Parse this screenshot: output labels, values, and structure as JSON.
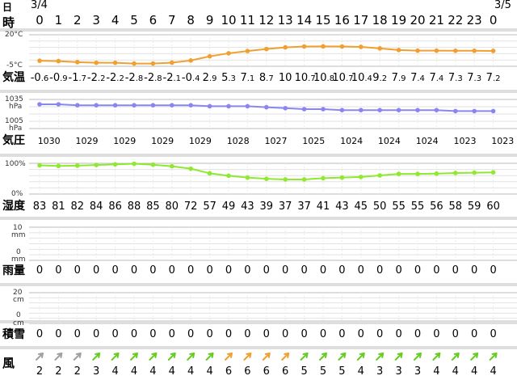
{
  "header": {
    "day_label": "日",
    "hour_label": "時",
    "date_start": "3/4",
    "date_end": "3/5",
    "hours": [
      "0",
      "1",
      "2",
      "3",
      "4",
      "5",
      "6",
      "7",
      "8",
      "9",
      "10",
      "11",
      "12",
      "13",
      "14",
      "15",
      "16",
      "17",
      "18",
      "19",
      "20",
      "21",
      "22",
      "23",
      "0"
    ]
  },
  "temperature": {
    "label": "気温",
    "axis_top": "20°C",
    "axis_bottom": "-5°C",
    "ylim": [
      -5,
      20
    ],
    "color": "#f0a030",
    "values": [
      {
        "i": "-0",
        "d": ".6"
      },
      {
        "i": "-0",
        "d": ".9"
      },
      {
        "i": "-1",
        "d": ".7"
      },
      {
        "i": "-2",
        "d": ".2"
      },
      {
        "i": "-2",
        "d": ".2"
      },
      {
        "i": "-2",
        "d": ".8"
      },
      {
        "i": "-2",
        "d": ".8"
      },
      {
        "i": "-2",
        "d": ".1"
      },
      {
        "i": "-0",
        "d": ".4"
      },
      {
        "i": "2",
        "d": ".9"
      },
      {
        "i": "5",
        "d": ".3"
      },
      {
        "i": "7",
        "d": ".1"
      },
      {
        "i": "8",
        "d": ".7"
      },
      {
        "i": "10",
        "d": ""
      },
      {
        "i": "10",
        "d": ".7"
      },
      {
        "i": "10",
        "d": ".8"
      },
      {
        "i": "10",
        "d": ".7"
      },
      {
        "i": "10",
        "d": ".4"
      },
      {
        "i": "9",
        "d": ".2"
      },
      {
        "i": "7",
        "d": ".9"
      },
      {
        "i": "7",
        "d": ".4"
      },
      {
        "i": "7",
        "d": ".4"
      },
      {
        "i": "7",
        "d": ".3"
      },
      {
        "i": "7",
        "d": ".3"
      },
      {
        "i": "7",
        "d": ".2"
      }
    ]
  },
  "pressure": {
    "label": "気圧",
    "axis_top_value": "1035",
    "axis_top_unit": "hPa",
    "axis_bottom_value": "1005",
    "axis_bottom_unit": "hPa",
    "ylim": [
      1005,
      1035
    ],
    "color": "#8a86f0",
    "values_every_2h": [
      "1030",
      "1029",
      "1029",
      "1029",
      "1029",
      "1028",
      "1027",
      "1025",
      "1024",
      "1024",
      "1024",
      "1023",
      "1023"
    ],
    "series": [
      1030,
      1030,
      1029,
      1029,
      1029,
      1029,
      1029,
      1029,
      1029,
      1028,
      1028,
      1028,
      1027,
      1026,
      1025,
      1025,
      1024,
      1024,
      1024,
      1024,
      1024,
      1024,
      1023,
      1023,
      1023
    ]
  },
  "humidity": {
    "label": "湿度",
    "axis_top": "100%",
    "axis_bottom": "0%",
    "ylim": [
      0,
      100
    ],
    "color": "#90e830",
    "values": [
      "83",
      "81",
      "82",
      "84",
      "86",
      "88",
      "85",
      "80",
      "72",
      "57",
      "49",
      "43",
      "39",
      "37",
      "37",
      "41",
      "43",
      "45",
      "50",
      "55",
      "55",
      "56",
      "58",
      "59",
      "60"
    ]
  },
  "rain": {
    "label": "雨量",
    "axis_top_value": "10",
    "axis_top_unit": "mm",
    "axis_bottom_value": "0",
    "axis_bottom_unit": "mm",
    "values": [
      "0",
      "0",
      "0",
      "0",
      "0",
      "0",
      "0",
      "0",
      "0",
      "0",
      "0",
      "0",
      "0",
      "0",
      "0",
      "0",
      "0",
      "0",
      "0",
      "0",
      "0",
      "0",
      "0",
      "0",
      "0"
    ]
  },
  "snow": {
    "label": "積雪",
    "axis_top_value": "20",
    "axis_top_unit": "cm",
    "axis_bottom_value": "0",
    "axis_bottom_unit": "cm",
    "values": [
      "0",
      "0",
      "0",
      "0",
      "0",
      "0",
      "0",
      "0",
      "0",
      "0",
      "0",
      "0",
      "0",
      "0",
      "0",
      "0",
      "0",
      "0",
      "0",
      "0",
      "0",
      "0",
      "0",
      "0",
      "0"
    ]
  },
  "wind": {
    "label": "風",
    "speeds": [
      "2",
      "2",
      "2",
      "3",
      "4",
      "4",
      "4",
      "4",
      "4",
      "4",
      "6",
      "6",
      "6",
      "6",
      "5",
      "5",
      "5",
      "4",
      "3",
      "3",
      "3",
      "4",
      "4",
      "4",
      "4"
    ],
    "colors": [
      "#a0a0a0",
      "#a0a0a0",
      "#a0a0a0",
      "#66cc22",
      "#66cc22",
      "#66cc22",
      "#66cc22",
      "#66cc22",
      "#66cc22",
      "#66cc22",
      "#f0a030",
      "#f0a030",
      "#f0a030",
      "#f0a030",
      "#66cc22",
      "#66cc22",
      "#66cc22",
      "#66cc22",
      "#66cc22",
      "#66cc22",
      "#66cc22",
      "#66cc22",
      "#66cc22",
      "#66cc22",
      "#66cc22"
    ]
  }
}
